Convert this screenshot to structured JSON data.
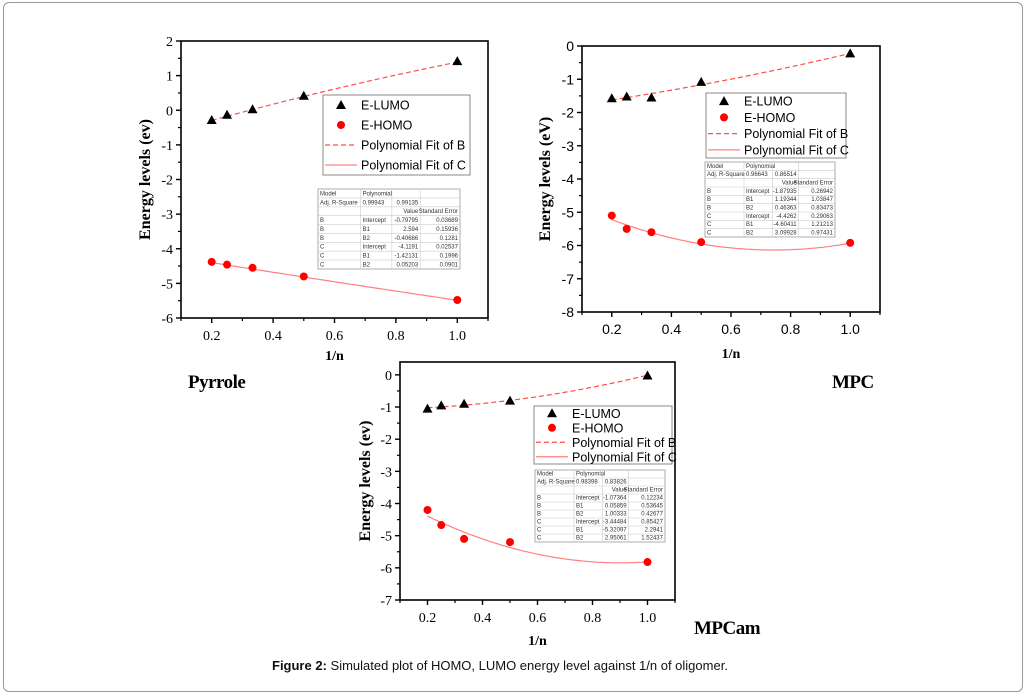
{
  "figure": {
    "caption_label": "Figure 2:",
    "caption_text": " Simulated plot of HOMO, LUMO energy level against 1/n of oligomer."
  },
  "colors": {
    "lumo_marker": "#000000",
    "homo_marker": "#ff0000",
    "fit_b": "#ff4d4d",
    "fit_c": "#ff8080",
    "axis": "#000000"
  },
  "chart_data": [
    {
      "type": "scatter",
      "title": "Pyrrole",
      "xlabel": "1/n",
      "ylabel": "Energy levels (ev)",
      "xlim": [
        0.1,
        1.1
      ],
      "ylim": [
        -6,
        2
      ],
      "xticks": [
        0.2,
        0.4,
        0.6,
        0.8,
        1.0
      ],
      "xtick_labels": [
        "0.2",
        "0.4",
        "0.6",
        "0.8",
        "1.0"
      ],
      "yticks": [
        -6,
        -5,
        -4,
        -3,
        -2,
        -1,
        0,
        1,
        2
      ],
      "ytick_labels": [
        "-6",
        "-5",
        "-4",
        "-3",
        "-2",
        "-1",
        "0",
        "1",
        "2"
      ],
      "x": [
        0.2,
        0.25,
        0.333,
        0.5,
        1.0
      ],
      "series": [
        {
          "name": "E-LUMO",
          "marker": "triangle",
          "values": [
            -0.28,
            -0.13,
            0.03,
            0.42,
            1.42
          ]
        },
        {
          "name": "E-HOMO",
          "marker": "circle",
          "values": [
            -4.38,
            -4.46,
            -4.55,
            -4.8,
            -5.48
          ]
        }
      ],
      "fits": [
        {
          "name": "Polynomial Fit of B",
          "style": "dashed",
          "intercept": -0.79795,
          "b1": 2.594,
          "b2": -0.40686
        },
        {
          "name": "Polynomial Fit of C",
          "style": "solid",
          "intercept": -4.1191,
          "b1": -1.42131,
          "b2": 0.05203
        }
      ],
      "legend": [
        "E-LUMO",
        "E-HOMO",
        "Polynomial Fit of B",
        "Polynomial Fit of C"
      ],
      "legend_position": "upper-right",
      "fit_table": {
        "header": [
          "Model",
          "Polynomial",
          "",
          ""
        ],
        "adj_r": [
          "Adj. R-Square",
          "0.99943",
          "0.99135",
          ""
        ],
        "cols": [
          "",
          "",
          "Value",
          "Standard Error"
        ],
        "rows": [
          [
            "B",
            "Intercept",
            "-0.79795",
            "0.03689"
          ],
          [
            "B",
            "B1",
            "2.594",
            "0.15936"
          ],
          [
            "B",
            "B2",
            "-0.40686",
            "0.1281"
          ],
          [
            "C",
            "Intercept",
            "-4.1191",
            "0.02537"
          ],
          [
            "C",
            "B1",
            "-1.42131",
            "0.1996"
          ],
          [
            "C",
            "B2",
            "0.05203",
            "0.0901"
          ]
        ]
      }
    },
    {
      "type": "scatter",
      "title": "MPC",
      "xlabel": "1/n",
      "ylabel": "Energy levels (eV)",
      "xlim": [
        0.1,
        1.1
      ],
      "ylim": [
        -8,
        0
      ],
      "xticks": [
        0.2,
        0.4,
        0.6,
        0.8,
        1.0
      ],
      "xtick_labels": [
        "0.2",
        "0.4",
        "0.6",
        "0.8",
        "1.0"
      ],
      "yticks": [
        -8,
        -7,
        -6,
        -5,
        -4,
        -3,
        -2,
        -1,
        0
      ],
      "ytick_labels": [
        "-8",
        "-7",
        "-6",
        "-5",
        "-4",
        "-3",
        "-2",
        "-1",
        "0"
      ],
      "x": [
        0.2,
        0.25,
        0.333,
        0.5,
        1.0
      ],
      "series": [
        {
          "name": "E-LUMO",
          "marker": "triangle",
          "values": [
            -1.57,
            -1.52,
            -1.55,
            -1.08,
            -0.22
          ]
        },
        {
          "name": "E-HOMO",
          "marker": "circle",
          "values": [
            -5.1,
            -5.5,
            -5.6,
            -5.9,
            -5.92
          ]
        }
      ],
      "fits": [
        {
          "name": "Polynomial Fit of B",
          "style": "dashed",
          "intercept": -1.87935,
          "b1": 1.19344,
          "b2": 0.46363
        },
        {
          "name": "Polynomial Fit of C",
          "style": "solid",
          "intercept": -4.4262,
          "b1": -4.60411,
          "b2": 3.09928
        }
      ],
      "legend": [
        "E-LUMO",
        "E-HOMO",
        "Polynomial Fit of B",
        "Polynomial Fit of C"
      ],
      "legend_position": "upper-right",
      "fit_table": {
        "header": [
          "Model",
          "Polynomial",
          "",
          ""
        ],
        "adj_r": [
          "Adj. R-Square",
          "0.96643",
          "0.86514",
          ""
        ],
        "cols": [
          "",
          "",
          "Value",
          "Standard Error"
        ],
        "rows": [
          [
            "B",
            "Intercept",
            "-1.87935",
            "0.26942"
          ],
          [
            "B",
            "B1",
            "1.19344",
            "1.03847"
          ],
          [
            "B",
            "B2",
            "0.46363",
            "0.83473"
          ],
          [
            "C",
            "Intercept",
            "-4.4262",
            "0.29063"
          ],
          [
            "C",
            "B1",
            "-4.60411",
            "1.21213"
          ],
          [
            "C",
            "B2",
            "3.09928",
            "0.97431"
          ]
        ]
      }
    },
    {
      "type": "scatter",
      "title": "MPCam",
      "xlabel": "1/n",
      "ylabel": "Energy levels (ev)",
      "xlim": [
        0.1,
        1.1
      ],
      "ylim": [
        -7,
        0.4
      ],
      "xticks": [
        0.2,
        0.4,
        0.6,
        0.8,
        1.0
      ],
      "xtick_labels": [
        "0.2",
        "0.4",
        "0.6",
        "0.8",
        "1.0"
      ],
      "yticks": [
        -7,
        -6,
        -5,
        -4,
        -3,
        -2,
        -1,
        0
      ],
      "ytick_labels": [
        "-7",
        "-6",
        "-5",
        "-4",
        "-3",
        "-2",
        "-1",
        "0"
      ],
      "x": [
        0.2,
        0.25,
        0.333,
        0.5,
        1.0
      ],
      "series": [
        {
          "name": "E-LUMO",
          "marker": "triangle",
          "values": [
            -1.05,
            -0.95,
            -0.9,
            -0.8,
            -0.02
          ]
        },
        {
          "name": "E-HOMO",
          "marker": "circle",
          "values": [
            -4.2,
            -4.67,
            -5.1,
            -5.2,
            -5.82
          ]
        }
      ],
      "fits": [
        {
          "name": "Polynomial Fit of B",
          "style": "dashed",
          "intercept": -1.07364,
          "b1": 0.05859,
          "b2": 1.00333
        },
        {
          "name": "Polynomial Fit of C",
          "style": "solid",
          "intercept": -3.44484,
          "b1": -5.32097,
          "b2": 2.95061
        }
      ],
      "legend": [
        "E-LUMO",
        "E-HOMO",
        "Polynomial Fit of B",
        "Polynomial Fit of C"
      ],
      "legend_position": "upper-right",
      "fit_table": {
        "header": [
          "Model",
          "Polynomial",
          "",
          ""
        ],
        "adj_r": [
          "Adj. R-Square",
          "0.98398",
          "0.83826",
          ""
        ],
        "cols": [
          "",
          "",
          "Value",
          "Standard Error"
        ],
        "rows": [
          [
            "B",
            "Intercept",
            "-1.07364",
            "0.12234"
          ],
          [
            "B",
            "B1",
            "0.05859",
            "0.53645"
          ],
          [
            "B",
            "B2",
            "1.00333",
            "0.42677"
          ],
          [
            "C",
            "Intercept",
            "-3.44484",
            "0.85427"
          ],
          [
            "C",
            "B1",
            "-5.32097",
            "2.2941"
          ],
          [
            "C",
            "B2",
            "2.95061",
            "1.52437"
          ]
        ]
      }
    }
  ]
}
